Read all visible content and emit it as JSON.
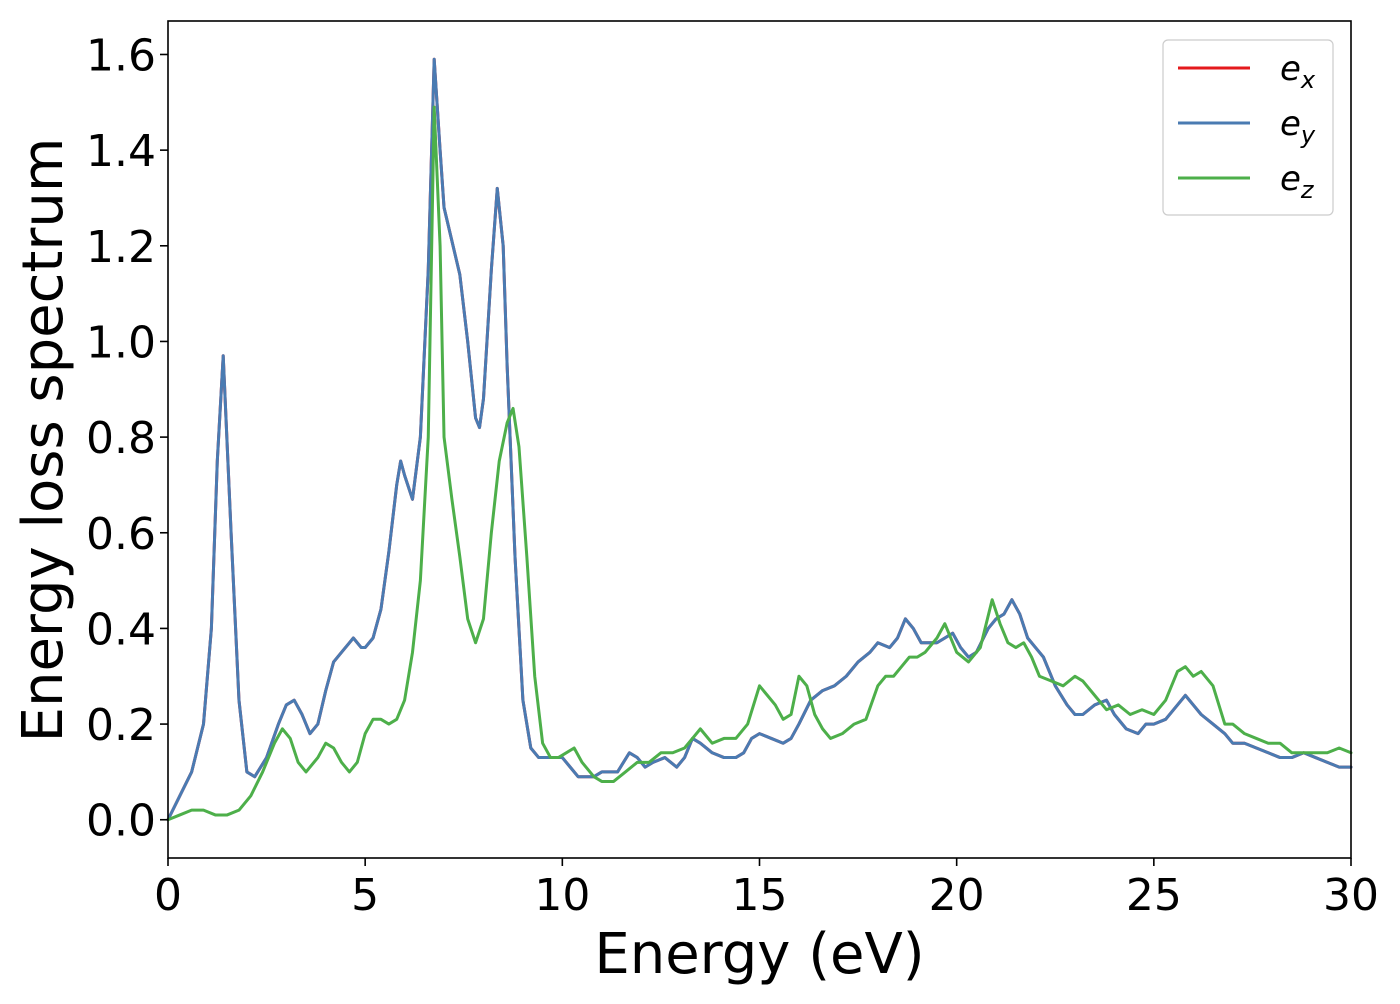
{
  "chart_data": {
    "type": "line",
    "title": "",
    "xlabel": "Energy (eV)",
    "ylabel": "Energy loss spectrum",
    "xlim": [
      0,
      30
    ],
    "ylim": [
      -0.08,
      1.67
    ],
    "xticks": [
      0,
      5,
      10,
      15,
      20,
      25,
      30
    ],
    "xtick_labels": [
      "0",
      "5",
      "10",
      "15",
      "20",
      "25",
      "30"
    ],
    "yticks": [
      0.0,
      0.2,
      0.4,
      0.6,
      0.8,
      1.0,
      1.2,
      1.4,
      1.6
    ],
    "ytick_labels": [
      "0.0",
      "0.2",
      "0.4",
      "0.6",
      "0.8",
      "1.0",
      "1.2",
      "1.4",
      "1.6"
    ],
    "grid": false,
    "legend_position": "top-right",
    "series": [
      {
        "name": "e_x",
        "legend_base": "e",
        "legend_sub": "x",
        "color": "#e41a1c",
        "x": [
          0,
          0.3,
          0.6,
          0.9,
          1.1,
          1.25,
          1.4,
          1.6,
          1.8,
          2.0,
          2.2,
          2.5,
          2.8,
          3.0,
          3.2,
          3.4,
          3.6,
          3.8,
          4.0,
          4.2,
          4.4,
          4.6,
          4.7,
          4.9,
          5.0,
          5.2,
          5.4,
          5.6,
          5.8,
          5.9,
          6.0,
          6.2,
          6.4,
          6.6,
          6.75,
          6.9,
          7.0,
          7.2,
          7.4,
          7.6,
          7.8,
          7.9,
          8.0,
          8.2,
          8.35,
          8.5,
          8.6,
          8.8,
          9.0,
          9.2,
          9.4,
          9.6,
          9.8,
          10.0,
          10.2,
          10.4,
          10.6,
          10.8,
          11.0,
          11.4,
          11.7,
          11.9,
          12.1,
          12.3,
          12.6,
          12.9,
          13.1,
          13.3,
          13.5,
          13.8,
          14.1,
          14.4,
          14.6,
          14.8,
          15.0,
          15.3,
          15.6,
          15.8,
          16.0,
          16.3,
          16.6,
          16.9,
          17.2,
          17.5,
          17.8,
          18.0,
          18.3,
          18.5,
          18.7,
          18.9,
          19.1,
          19.3,
          19.5,
          19.7,
          19.9,
          20.1,
          20.3,
          20.5,
          20.8,
          21.0,
          21.2,
          21.4,
          21.6,
          21.8,
          22.0,
          22.2,
          22.5,
          22.8,
          23.0,
          23.2,
          23.5,
          23.8,
          24.0,
          24.3,
          24.6,
          24.8,
          25.0,
          25.3,
          25.6,
          25.8,
          26.0,
          26.2,
          26.5,
          26.8,
          27.0,
          27.3,
          27.6,
          27.9,
          28.2,
          28.5,
          28.8,
          29.1,
          29.4,
          29.7,
          30.0
        ],
        "y": [
          0.0,
          0.05,
          0.1,
          0.2,
          0.4,
          0.75,
          0.97,
          0.6,
          0.25,
          0.1,
          0.09,
          0.13,
          0.2,
          0.24,
          0.25,
          0.22,
          0.18,
          0.2,
          0.27,
          0.33,
          0.35,
          0.37,
          0.38,
          0.36,
          0.36,
          0.38,
          0.44,
          0.56,
          0.7,
          0.75,
          0.72,
          0.67,
          0.8,
          1.15,
          1.59,
          1.4,
          1.28,
          1.21,
          1.14,
          1.0,
          0.84,
          0.82,
          0.88,
          1.15,
          1.32,
          1.2,
          0.95,
          0.55,
          0.25,
          0.15,
          0.13,
          0.13,
          0.13,
          0.13,
          0.11,
          0.09,
          0.09,
          0.09,
          0.1,
          0.1,
          0.14,
          0.13,
          0.11,
          0.12,
          0.13,
          0.11,
          0.13,
          0.17,
          0.16,
          0.14,
          0.13,
          0.13,
          0.14,
          0.17,
          0.18,
          0.17,
          0.16,
          0.17,
          0.2,
          0.25,
          0.27,
          0.28,
          0.3,
          0.33,
          0.35,
          0.37,
          0.36,
          0.38,
          0.42,
          0.4,
          0.37,
          0.37,
          0.37,
          0.38,
          0.39,
          0.36,
          0.34,
          0.35,
          0.4,
          0.42,
          0.43,
          0.46,
          0.43,
          0.38,
          0.36,
          0.34,
          0.28,
          0.24,
          0.22,
          0.22,
          0.24,
          0.25,
          0.22,
          0.19,
          0.18,
          0.2,
          0.2,
          0.21,
          0.24,
          0.26,
          0.24,
          0.22,
          0.2,
          0.18,
          0.16,
          0.16,
          0.15,
          0.14,
          0.13,
          0.13,
          0.14,
          0.13,
          0.12,
          0.11,
          0.11
        ]
      },
      {
        "name": "e_y",
        "legend_base": "e",
        "legend_sub": "y",
        "color": "#4a7bb2",
        "x": [
          0,
          0.3,
          0.6,
          0.9,
          1.1,
          1.25,
          1.4,
          1.6,
          1.8,
          2.0,
          2.2,
          2.5,
          2.8,
          3.0,
          3.2,
          3.4,
          3.6,
          3.8,
          4.0,
          4.2,
          4.4,
          4.6,
          4.7,
          4.9,
          5.0,
          5.2,
          5.4,
          5.6,
          5.8,
          5.9,
          6.0,
          6.2,
          6.4,
          6.6,
          6.75,
          6.9,
          7.0,
          7.2,
          7.4,
          7.6,
          7.8,
          7.9,
          8.0,
          8.2,
          8.35,
          8.5,
          8.6,
          8.8,
          9.0,
          9.2,
          9.4,
          9.6,
          9.8,
          10.0,
          10.2,
          10.4,
          10.6,
          10.8,
          11.0,
          11.4,
          11.7,
          11.9,
          12.1,
          12.3,
          12.6,
          12.9,
          13.1,
          13.3,
          13.5,
          13.8,
          14.1,
          14.4,
          14.6,
          14.8,
          15.0,
          15.3,
          15.6,
          15.8,
          16.0,
          16.3,
          16.6,
          16.9,
          17.2,
          17.5,
          17.8,
          18.0,
          18.3,
          18.5,
          18.7,
          18.9,
          19.1,
          19.3,
          19.5,
          19.7,
          19.9,
          20.1,
          20.3,
          20.5,
          20.8,
          21.0,
          21.2,
          21.4,
          21.6,
          21.8,
          22.0,
          22.2,
          22.5,
          22.8,
          23.0,
          23.2,
          23.5,
          23.8,
          24.0,
          24.3,
          24.6,
          24.8,
          25.0,
          25.3,
          25.6,
          25.8,
          26.0,
          26.2,
          26.5,
          26.8,
          27.0,
          27.3,
          27.6,
          27.9,
          28.2,
          28.5,
          28.8,
          29.1,
          29.4,
          29.7,
          30.0
        ],
        "y": [
          0.0,
          0.05,
          0.1,
          0.2,
          0.4,
          0.75,
          0.97,
          0.6,
          0.25,
          0.1,
          0.09,
          0.13,
          0.2,
          0.24,
          0.25,
          0.22,
          0.18,
          0.2,
          0.27,
          0.33,
          0.35,
          0.37,
          0.38,
          0.36,
          0.36,
          0.38,
          0.44,
          0.56,
          0.7,
          0.75,
          0.72,
          0.67,
          0.8,
          1.15,
          1.59,
          1.4,
          1.28,
          1.21,
          1.14,
          1.0,
          0.84,
          0.82,
          0.88,
          1.15,
          1.32,
          1.2,
          0.95,
          0.55,
          0.25,
          0.15,
          0.13,
          0.13,
          0.13,
          0.13,
          0.11,
          0.09,
          0.09,
          0.09,
          0.1,
          0.1,
          0.14,
          0.13,
          0.11,
          0.12,
          0.13,
          0.11,
          0.13,
          0.17,
          0.16,
          0.14,
          0.13,
          0.13,
          0.14,
          0.17,
          0.18,
          0.17,
          0.16,
          0.17,
          0.2,
          0.25,
          0.27,
          0.28,
          0.3,
          0.33,
          0.35,
          0.37,
          0.36,
          0.38,
          0.42,
          0.4,
          0.37,
          0.37,
          0.37,
          0.38,
          0.39,
          0.36,
          0.34,
          0.35,
          0.4,
          0.42,
          0.43,
          0.46,
          0.43,
          0.38,
          0.36,
          0.34,
          0.28,
          0.24,
          0.22,
          0.22,
          0.24,
          0.25,
          0.22,
          0.19,
          0.18,
          0.2,
          0.2,
          0.21,
          0.24,
          0.26,
          0.24,
          0.22,
          0.2,
          0.18,
          0.16,
          0.16,
          0.15,
          0.14,
          0.13,
          0.13,
          0.14,
          0.13,
          0.12,
          0.11,
          0.11
        ]
      },
      {
        "name": "e_z",
        "legend_base": "e",
        "legend_sub": "z",
        "color": "#4daf4a",
        "x": [
          0,
          0.3,
          0.6,
          0.9,
          1.2,
          1.5,
          1.8,
          2.1,
          2.4,
          2.7,
          2.9,
          3.1,
          3.3,
          3.5,
          3.8,
          4.0,
          4.2,
          4.4,
          4.6,
          4.8,
          5.0,
          5.2,
          5.4,
          5.6,
          5.8,
          6.0,
          6.2,
          6.4,
          6.6,
          6.75,
          6.9,
          7.0,
          7.2,
          7.4,
          7.6,
          7.8,
          8.0,
          8.2,
          8.4,
          8.6,
          8.75,
          8.9,
          9.1,
          9.3,
          9.5,
          9.7,
          9.9,
          10.1,
          10.3,
          10.5,
          10.8,
          11.0,
          11.3,
          11.6,
          11.9,
          12.2,
          12.5,
          12.8,
          13.1,
          13.3,
          13.5,
          13.8,
          14.1,
          14.4,
          14.7,
          15.0,
          15.2,
          15.4,
          15.6,
          15.8,
          16.0,
          16.2,
          16.4,
          16.6,
          16.8,
          17.1,
          17.4,
          17.7,
          18.0,
          18.2,
          18.4,
          18.6,
          18.8,
          19.0,
          19.2,
          19.5,
          19.7,
          20.0,
          20.3,
          20.6,
          20.9,
          21.1,
          21.3,
          21.5,
          21.7,
          21.9,
          22.1,
          22.4,
          22.7,
          23.0,
          23.2,
          23.5,
          23.8,
          24.1,
          24.4,
          24.7,
          25.0,
          25.3,
          25.6,
          25.8,
          26.0,
          26.2,
          26.5,
          26.8,
          27.0,
          27.3,
          27.6,
          27.9,
          28.2,
          28.5,
          28.8,
          29.1,
          29.4,
          29.7,
          30.0
        ],
        "y": [
          0.0,
          0.01,
          0.02,
          0.02,
          0.01,
          0.01,
          0.02,
          0.05,
          0.1,
          0.16,
          0.19,
          0.17,
          0.12,
          0.1,
          0.13,
          0.16,
          0.15,
          0.12,
          0.1,
          0.12,
          0.18,
          0.21,
          0.21,
          0.2,
          0.21,
          0.25,
          0.35,
          0.5,
          0.8,
          1.49,
          1.2,
          0.8,
          0.67,
          0.55,
          0.42,
          0.37,
          0.42,
          0.6,
          0.75,
          0.83,
          0.86,
          0.78,
          0.55,
          0.3,
          0.16,
          0.13,
          0.13,
          0.14,
          0.15,
          0.12,
          0.09,
          0.08,
          0.08,
          0.1,
          0.12,
          0.12,
          0.14,
          0.14,
          0.15,
          0.17,
          0.19,
          0.16,
          0.17,
          0.17,
          0.2,
          0.28,
          0.26,
          0.24,
          0.21,
          0.22,
          0.3,
          0.28,
          0.22,
          0.19,
          0.17,
          0.18,
          0.2,
          0.21,
          0.28,
          0.3,
          0.3,
          0.32,
          0.34,
          0.34,
          0.35,
          0.38,
          0.41,
          0.35,
          0.33,
          0.36,
          0.46,
          0.41,
          0.37,
          0.36,
          0.37,
          0.34,
          0.3,
          0.29,
          0.28,
          0.3,
          0.29,
          0.26,
          0.23,
          0.24,
          0.22,
          0.23,
          0.22,
          0.25,
          0.31,
          0.32,
          0.3,
          0.31,
          0.28,
          0.2,
          0.2,
          0.18,
          0.17,
          0.16,
          0.16,
          0.14,
          0.14,
          0.14,
          0.14,
          0.15,
          0.14
        ]
      }
    ]
  }
}
